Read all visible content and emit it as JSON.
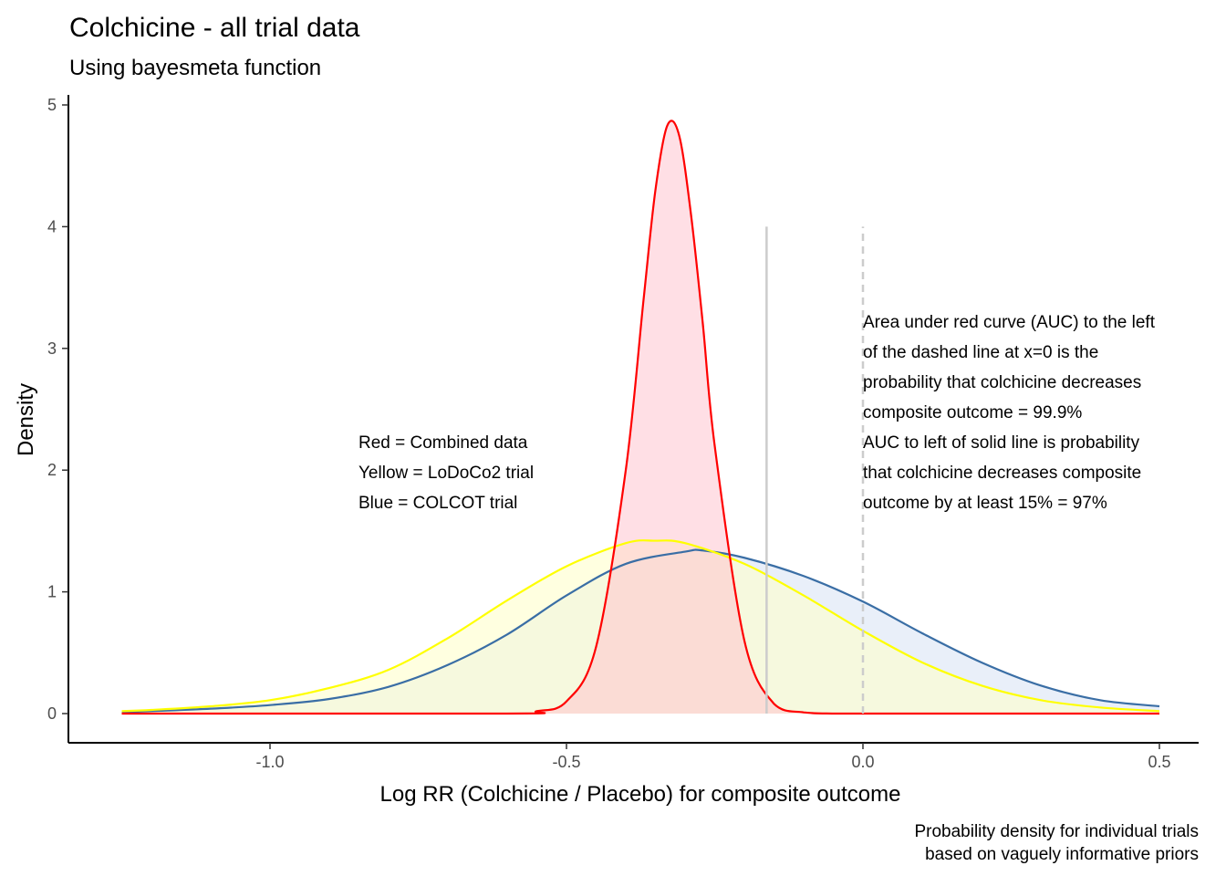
{
  "chart_data": {
    "type": "area",
    "title": "Colchicine - all trial data",
    "subtitle": "Using bayesmeta function",
    "xlabel": "Log RR (Colchicine / Placebo) for composite outcome",
    "ylabel": "Density",
    "xlim": [
      -1.25,
      0.5
    ],
    "ylim": [
      0,
      5
    ],
    "x_ticks": [
      -1.0,
      -0.5,
      0.0,
      0.5
    ],
    "x_tick_labels": [
      "-1.0",
      "-0.5",
      "0.0",
      "0.5"
    ],
    "y_ticks": [
      0,
      1,
      2,
      3,
      4,
      5
    ],
    "y_tick_labels": [
      "0",
      "1",
      "2",
      "3",
      "4",
      "5"
    ],
    "grid": false,
    "series": [
      {
        "color": "#3a6ea5",
        "fill": "#dbe4f5",
        "fill_opacity": 0.6,
        "x": [
          -1.25,
          -1.2,
          -1.1,
          -1.0,
          -0.9,
          -0.8,
          -0.7,
          -0.6,
          -0.5,
          -0.4,
          -0.3,
          -0.27,
          -0.2,
          -0.1,
          0.0,
          0.1,
          0.2,
          0.3,
          0.4,
          0.5
        ],
        "y": [
          0.01,
          0.02,
          0.04,
          0.07,
          0.12,
          0.22,
          0.4,
          0.65,
          0.97,
          1.23,
          1.33,
          1.34,
          1.28,
          1.13,
          0.92,
          0.66,
          0.42,
          0.23,
          0.11,
          0.06
        ]
      },
      {
        "color": "#ffff00",
        "fill": "#ffffcc",
        "fill_opacity": 0.6,
        "x": [
          -1.25,
          -1.2,
          -1.1,
          -1.0,
          -0.9,
          -0.8,
          -0.7,
          -0.6,
          -0.5,
          -0.4,
          -0.35,
          -0.3,
          -0.2,
          -0.1,
          0.0,
          0.1,
          0.2,
          0.3,
          0.4,
          0.5
        ],
        "y": [
          0.02,
          0.03,
          0.06,
          0.11,
          0.21,
          0.36,
          0.62,
          0.93,
          1.21,
          1.4,
          1.42,
          1.4,
          1.23,
          0.97,
          0.68,
          0.42,
          0.23,
          0.11,
          0.05,
          0.02
        ]
      },
      {
        "color": "#ff0000",
        "fill": "#ffc0cb",
        "fill_opacity": 0.5,
        "x": [
          -1.25,
          -0.6,
          -0.55,
          -0.5,
          -0.45,
          -0.4,
          -0.37,
          -0.35,
          -0.33,
          -0.31,
          -0.29,
          -0.27,
          -0.25,
          -0.2,
          -0.15,
          -0.1,
          -0.05,
          0.0,
          0.5
        ],
        "y": [
          0.0,
          0.0,
          0.02,
          0.1,
          0.55,
          2.0,
          3.4,
          4.3,
          4.83,
          4.75,
          4.1,
          3.2,
          2.2,
          0.6,
          0.08,
          0.01,
          0.0,
          0.0,
          0.0
        ]
      }
    ],
    "vlines": [
      {
        "x": -0.1625,
        "y_top": 4.0,
        "style": "solid",
        "color": "#cccccc"
      },
      {
        "x": 0.0,
        "y_top": 4.0,
        "style": "dashed",
        "color": "#cccccc"
      }
    ],
    "legend_annotation": {
      "lines": [
        "Red = Combined data",
        "Yellow = LoDoCo2 trial",
        "Blue = COLCOT trial"
      ]
    },
    "auc_annotation": {
      "lines": [
        "Area under red curve (AUC) to the left",
        " of the dashed line at x=0 is the",
        "probability that colchicine decreases",
        " composite outcome = 99.9%",
        "AUC to left of solid line is probability",
        "that colchicine decreases composite",
        " outcome by at least 15% = 97%"
      ]
    },
    "caption": {
      "lines": [
        "Probability density for individual trials",
        "based on vaguely informative priors"
      ]
    }
  }
}
